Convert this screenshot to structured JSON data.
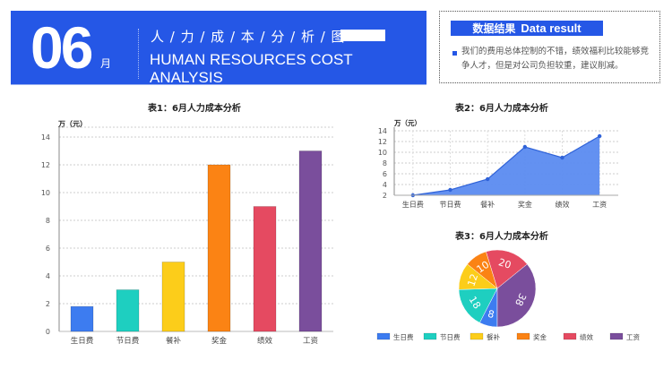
{
  "header": {
    "month_number": "06",
    "month_unit": "月",
    "title_cn": "人 / 力 / 成 / 本 / 分 / 析 / 图",
    "title_en": "HUMAN RESOURCES COST ANALYSIS"
  },
  "result": {
    "title_cn": "数据结果",
    "title_en": "Data result",
    "text": "我们的费用总体控制的不错，绩效福利比较能够竞争人才，但是对公司负担较重，建议削减。"
  },
  "colors": {
    "brand": "#2557e6",
    "series": [
      "#3d7cf0",
      "#1ecfc0",
      "#fccd1a",
      "#fb8314",
      "#e54a61",
      "#7a4e9c"
    ],
    "area": "#5b8bf0",
    "area_line": "#2f62d8"
  },
  "chart_data": [
    {
      "type": "bar",
      "title": "表1：6月人力成本分析",
      "ylabel": "万（元）",
      "xlabel": "",
      "categories": [
        "生日费",
        "节日费",
        "餐补",
        "奖金",
        "绩效",
        "工资"
      ],
      "values": [
        1.8,
        3,
        5,
        12,
        9,
        13
      ],
      "ylim": [
        0,
        14
      ],
      "yticks": [
        "0",
        "2",
        "4",
        "6",
        "8",
        "10",
        "12",
        "14"
      ],
      "grid": true,
      "legend": "none"
    },
    {
      "type": "area",
      "title": "表2：6月人力成本分析",
      "ylabel": "万（元）",
      "xlabel": "",
      "categories": [
        "生日费",
        "节日费",
        "餐补",
        "奖金",
        "绩效",
        "工资"
      ],
      "values": [
        2,
        3,
        5,
        11,
        9,
        13
      ],
      "ylim": [
        2,
        14
      ],
      "yticks": [
        "2",
        "4",
        "6",
        "8",
        "10",
        "12",
        "14"
      ],
      "grid": true,
      "legend": "none"
    },
    {
      "type": "pie",
      "title": "表3：6月人力成本分析",
      "categories": [
        "生日费",
        "节日费",
        "餐补",
        "奖金",
        "绩效",
        "工资"
      ],
      "values": [
        8,
        18,
        12,
        10,
        20,
        38
      ],
      "legend": "bottom"
    }
  ]
}
